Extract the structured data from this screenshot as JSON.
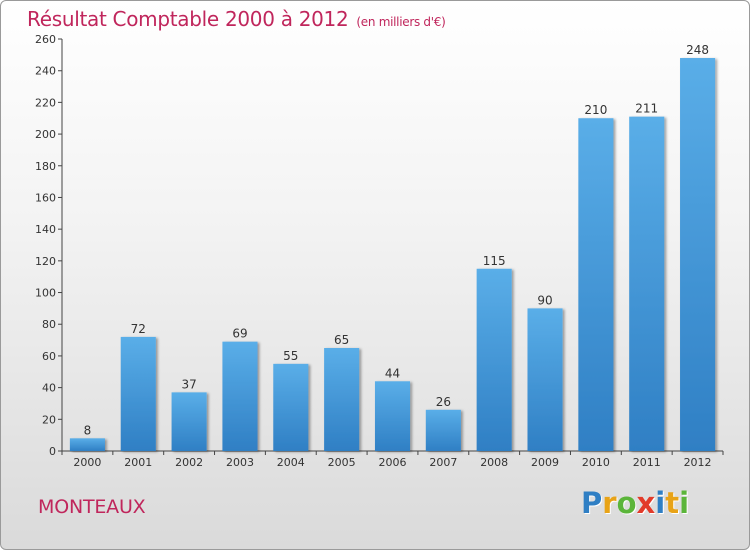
{
  "chart_data": {
    "type": "bar",
    "title": "Résultat Comptable 2000 à 2012",
    "subtitle": "(en milliers d'€)",
    "categories": [
      "2000",
      "2001",
      "2002",
      "2003",
      "2004",
      "2005",
      "2006",
      "2007",
      "2008",
      "2009",
      "2010",
      "2011",
      "2012"
    ],
    "values": [
      8,
      72,
      37,
      69,
      55,
      65,
      44,
      26,
      115,
      90,
      210,
      211,
      248
    ],
    "ylim": [
      0,
      260
    ],
    "yticks": [
      0,
      20,
      40,
      60,
      80,
      100,
      120,
      140,
      160,
      180,
      200,
      220,
      240,
      260
    ],
    "xlabel": "",
    "ylabel": "",
    "grid": false,
    "bar_color_light": "#5aaee8",
    "bar_color_dark": "#2f7fc4"
  },
  "footer": {
    "place": "MONTEAUX",
    "logo_letters": [
      {
        "char": "P",
        "color": "#2f7fc4"
      },
      {
        "char": "r",
        "color": "#e8a317"
      },
      {
        "char": "o",
        "color": "#5bb53a"
      },
      {
        "char": "x",
        "color": "#e23b2a"
      },
      {
        "char": "i",
        "color": "#2f7fc4"
      },
      {
        "char": "t",
        "color": "#e8a317"
      },
      {
        "char": "i",
        "color": "#5bb53a"
      }
    ]
  }
}
